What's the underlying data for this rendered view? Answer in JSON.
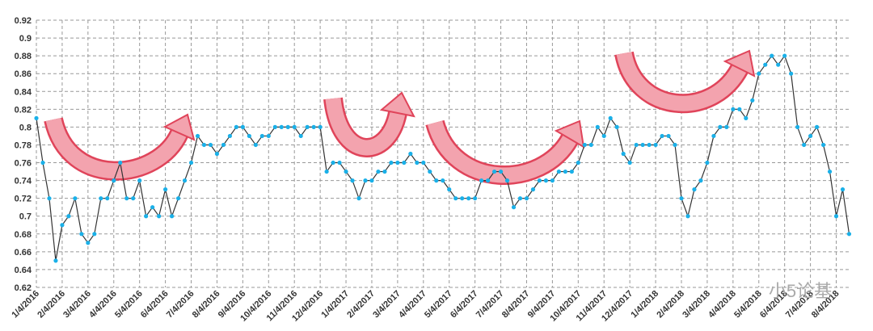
{
  "chart_data": {
    "type": "line",
    "categories": [
      "1/4/2016",
      null,
      null,
      null,
      "2/4/2016",
      null,
      null,
      null,
      "3/4/2016",
      null,
      null,
      null,
      "4/4/2016",
      null,
      null,
      null,
      "5/4/2016",
      null,
      null,
      null,
      "6/4/2016",
      null,
      null,
      null,
      "7/4/2016",
      null,
      null,
      null,
      "8/4/2016",
      null,
      null,
      null,
      "9/4/2016",
      null,
      null,
      null,
      "10/4/2016",
      null,
      null,
      null,
      "11/4/2016",
      null,
      null,
      null,
      "12/4/2016",
      null,
      null,
      null,
      "1/4/2017",
      null,
      null,
      null,
      "2/4/2017",
      null,
      null,
      null,
      "3/4/2017",
      null,
      null,
      null,
      "4/4/2017",
      null,
      null,
      null,
      "5/4/2017",
      null,
      null,
      null,
      "6/4/2017",
      null,
      null,
      null,
      "7/4/2017",
      null,
      null,
      null,
      "8/4/2017",
      null,
      null,
      null,
      "9/4/2017",
      null,
      null,
      null,
      "10/4/2017",
      null,
      null,
      null,
      "11/4/2017",
      null,
      null,
      null,
      "12/4/2017",
      null,
      null,
      null,
      "1/4/2018",
      null,
      null,
      null,
      "2/4/2018",
      null,
      null,
      null,
      "3/4/2018",
      null,
      null,
      null,
      "4/4/2018",
      null,
      null,
      null,
      "5/4/2018",
      null,
      null,
      null,
      "6/4/2018",
      null,
      null,
      null,
      "7/4/2018",
      null,
      null,
      null,
      "8/4/2018",
      null,
      null
    ],
    "series": [
      {
        "color": "#1ab0e8",
        "line_color": "#333333",
        "values": [
          0.81,
          0.76,
          0.72,
          0.65,
          0.69,
          0.7,
          0.72,
          0.68,
          0.67,
          0.68,
          0.72,
          0.72,
          0.74,
          0.76,
          0.72,
          0.72,
          0.74,
          0.7,
          0.71,
          0.7,
          0.73,
          0.7,
          0.72,
          0.74,
          0.76,
          0.79,
          0.78,
          0.78,
          0.77,
          0.78,
          0.79,
          0.8,
          0.8,
          0.79,
          0.78,
          0.79,
          0.79,
          0.8,
          0.8,
          0.8,
          0.8,
          0.79,
          0.8,
          0.8,
          0.8,
          0.75,
          0.76,
          0.76,
          0.75,
          0.74,
          0.72,
          0.74,
          0.74,
          0.75,
          0.75,
          0.76,
          0.76,
          0.76,
          0.77,
          0.76,
          0.76,
          0.75,
          0.74,
          0.74,
          0.73,
          0.72,
          0.72,
          0.72,
          0.72,
          0.74,
          0.74,
          0.75,
          0.75,
          0.74,
          0.71,
          0.72,
          0.72,
          0.73,
          0.74,
          0.74,
          0.74,
          0.75,
          0.75,
          0.75,
          0.76,
          0.78,
          0.78,
          0.8,
          0.79,
          0.81,
          0.8,
          0.77,
          0.76,
          0.78,
          0.78,
          0.78,
          0.78,
          0.79,
          0.79,
          0.78,
          0.72,
          0.7,
          0.73,
          0.74,
          0.76,
          0.79,
          0.8,
          0.8,
          0.82,
          0.82,
          0.81,
          0.83,
          0.86,
          0.87,
          0.88,
          0.87,
          0.88,
          0.86,
          0.8,
          0.78,
          0.79,
          0.8,
          0.78,
          0.75,
          0.7,
          0.73,
          0.68
        ]
      }
    ],
    "ylim": [
      0.62,
      0.92
    ],
    "yticks": [
      0.62,
      0.64,
      0.66,
      0.68,
      0.7,
      0.72,
      0.74,
      0.76,
      0.78,
      0.8,
      0.82,
      0.84,
      0.86,
      0.88,
      0.9,
      0.92
    ],
    "grid": true,
    "watermark": "小5论基"
  }
}
